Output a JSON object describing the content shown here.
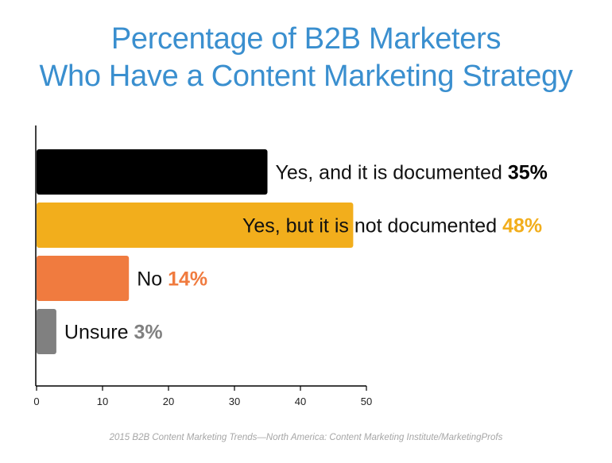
{
  "title_line1": "Percentage of B2B Marketers",
  "title_line2": "Who Have a Content Marketing Strategy",
  "source": "2015 B2B Content Marketing Trends—North America: Content Marketing Institute/MarketingProfs",
  "chart_data": {
    "type": "bar",
    "orientation": "horizontal",
    "categories": [
      "Yes, and it is documented",
      "Yes, but it is not documented",
      "No",
      "Unsure"
    ],
    "values": [
      35,
      48,
      14,
      3
    ],
    "value_labels": [
      "35%",
      "48%",
      "14%",
      "3%"
    ],
    "colors": [
      "#000000",
      "#f2ae1c",
      "#f07b3f",
      "#808080"
    ],
    "value_label_colors": [
      "#000000",
      "#f2ae1c",
      "#f07b3f",
      "#808080"
    ],
    "xlim": [
      0,
      50
    ],
    "xticks": [
      "0",
      "10",
      "20",
      "30",
      "40",
      "50"
    ],
    "xlabel": "",
    "ylabel": "",
    "grid": false,
    "legend": "none"
  }
}
